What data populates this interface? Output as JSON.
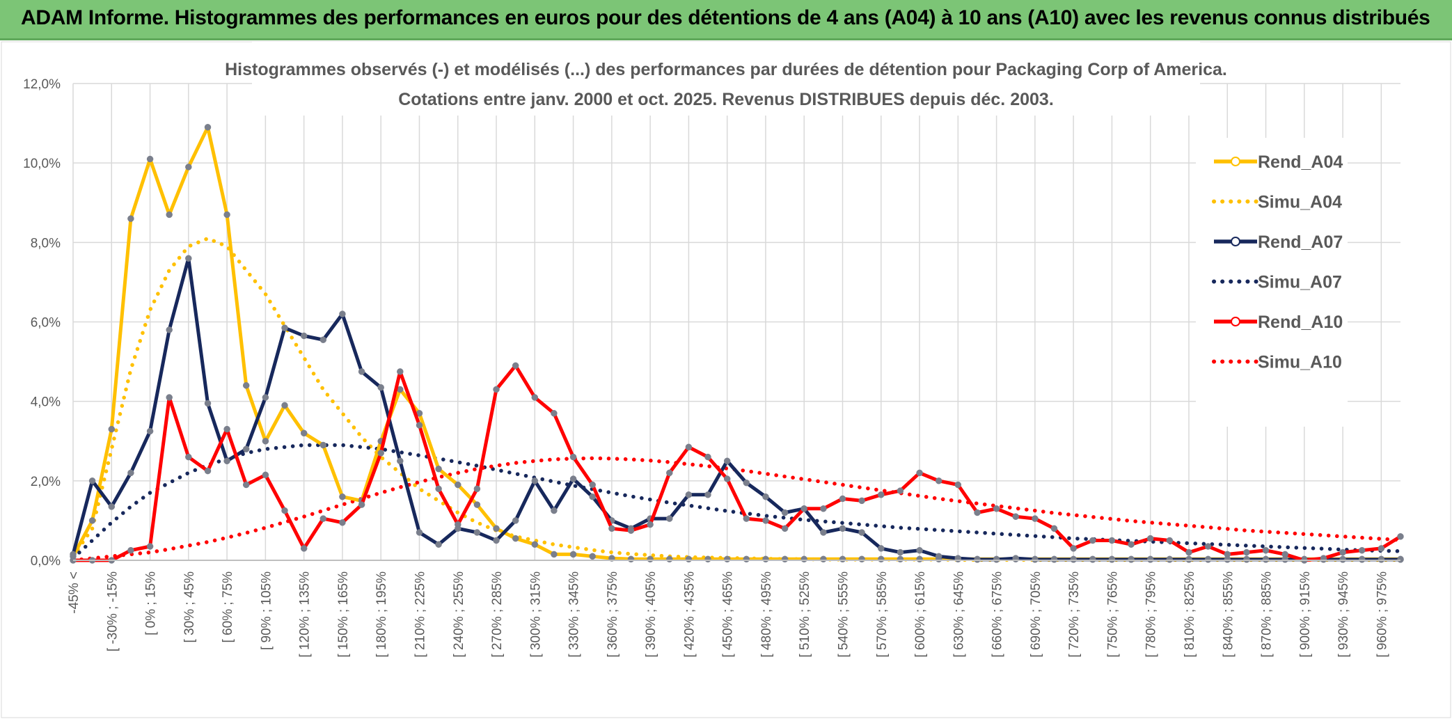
{
  "banner": {
    "title": "ADAM Informe. Histogrammes des performances en euros pour des détentions de 4 ans (A04) à 10 ans (A10) avec les revenus connus distribués"
  },
  "chart_data": {
    "type": "line",
    "title_lines": [
      "Histogrammes observés (-) et modélisés (...) des performances par durées de détention pour Packaging Corp of America.",
      "Cotations entre janv. 2000 et oct. 2025. Revenus DISTRIBUES depuis déc. 2003."
    ],
    "ylim": [
      0,
      12
    ],
    "y_ticks": [
      "0,0%",
      "2,0%",
      "4,0%",
      "6,0%",
      "8,0%",
      "10,0%",
      "12,0%"
    ],
    "x_labels": [
      "-45% <",
      "[ -30% ; -15%",
      "[ 0% ; 15%",
      "[ 30% ; 45%",
      "[ 60% ; 75%",
      "[ 90% ; 105%",
      "[ 120% ; 135%",
      "[ 150% ; 165%",
      "[ 180% ; 195%",
      "[ 210% ; 225%",
      "[ 240% ; 255%",
      "[ 270% ; 285%",
      "[ 300% ; 315%",
      "[ 330% ; 345%",
      "[ 360% ; 375%",
      "[ 390% ; 405%",
      "[ 420% ; 435%",
      "[ 450% ; 465%",
      "[ 480% ; 495%",
      "[ 510% ; 525%",
      "[ 540% ; 555%",
      "[ 570% ; 585%",
      "[ 600% ; 615%",
      "[ 630% ; 645%",
      "[ 660% ; 675%",
      "[ 690% ; 705%",
      "[ 720% ; 735%",
      "[ 750% ; 765%",
      "[ 780% ; 795%",
      "[ 810% ; 825%",
      "[ 840% ; 855%",
      "[ 870% ; 885%",
      "[ 900% ; 915%",
      "[ 930% ; 945%",
      "[ 960% ; 975%"
    ],
    "n_points": 70,
    "series": [
      {
        "name": "Rend_A04",
        "color": "#ffc000",
        "style": "solid",
        "values": [
          0.1,
          1.0,
          3.3,
          8.6,
          10.1,
          8.7,
          9.9,
          10.9,
          8.7,
          4.4,
          3.0,
          3.9,
          3.2,
          2.9,
          1.6,
          1.5,
          3.0,
          4.3,
          3.7,
          2.3,
          1.9,
          1.4,
          0.8,
          0.55,
          0.4,
          0.15,
          0.15,
          0.1,
          0.05,
          0.03,
          0.03,
          0.03,
          0.03,
          0.03,
          0.03,
          0.03,
          0.03,
          0.03,
          0.03,
          0.03,
          0.03,
          0.03,
          0.03,
          0.03,
          0.03,
          0.03,
          0.03,
          0.03,
          0.03,
          0.03,
          0.03,
          0.03,
          0.03,
          0.03,
          0.03,
          0.03,
          0.03,
          0.03,
          0.03,
          0.03,
          0.03,
          0.03,
          0.03,
          0.03,
          0.03,
          0.03,
          0.03,
          0.03,
          0.03,
          0.03
        ]
      },
      {
        "name": "Simu_A04",
        "color": "#ffc000",
        "style": "dotted",
        "values": [
          0.1,
          0.8,
          2.8,
          4.8,
          6.3,
          7.3,
          7.9,
          8.1,
          7.9,
          7.3,
          6.7,
          5.9,
          5.1,
          4.3,
          3.7,
          3.1,
          2.6,
          2.2,
          1.8,
          1.5,
          1.2,
          0.95,
          0.75,
          0.6,
          0.5,
          0.4,
          0.33,
          0.26,
          0.2,
          0.16,
          0.13,
          0.1,
          0.08,
          0.07,
          0.06,
          0.05,
          0.04,
          0.03,
          0.03,
          0.02,
          0.02,
          0.02,
          0.02,
          0.02,
          0.02,
          0.02,
          0.01,
          0.01,
          0.01,
          0.01,
          0.01,
          0.01,
          0.01,
          0.01,
          0.01,
          0.01,
          0.01,
          0.01,
          0.01,
          0.01,
          0.01,
          0.01,
          0.01,
          0.01,
          0.01,
          0.01,
          0.01,
          0.01,
          0.01,
          0.01
        ]
      },
      {
        "name": "Rend_A07",
        "color": "#17285c",
        "style": "solid",
        "values": [
          0.15,
          2.0,
          1.35,
          2.2,
          3.25,
          5.8,
          7.6,
          3.95,
          2.5,
          2.8,
          4.1,
          5.85,
          5.65,
          5.55,
          6.2,
          4.75,
          4.35,
          2.5,
          0.7,
          0.4,
          0.8,
          0.7,
          0.5,
          1.0,
          2.0,
          1.25,
          2.05,
          1.6,
          1.0,
          0.8,
          1.05,
          1.05,
          1.65,
          1.65,
          2.5,
          1.95,
          1.6,
          1.2,
          1.3,
          0.7,
          0.8,
          0.7,
          0.3,
          0.2,
          0.25,
          0.1,
          0.05,
          0.02,
          0.02,
          0.05,
          0.02,
          0.02,
          0.02,
          0.02,
          0.02,
          0.02,
          0.02,
          0.02,
          0.02,
          0.02,
          0.02,
          0.02,
          0.02,
          0.02,
          0.02,
          0.02,
          0.02,
          0.02,
          0.02,
          0.02
        ]
      },
      {
        "name": "Simu_A07",
        "color": "#17285c",
        "style": "dotted",
        "values": [
          0.05,
          0.5,
          0.95,
          1.35,
          1.7,
          1.95,
          2.2,
          2.4,
          2.55,
          2.7,
          2.8,
          2.85,
          2.9,
          2.9,
          2.9,
          2.85,
          2.8,
          2.72,
          2.64,
          2.56,
          2.47,
          2.38,
          2.28,
          2.18,
          2.08,
          1.98,
          1.88,
          1.79,
          1.7,
          1.61,
          1.53,
          1.45,
          1.38,
          1.31,
          1.24,
          1.18,
          1.12,
          1.07,
          1.02,
          0.98,
          0.94,
          0.9,
          0.86,
          0.82,
          0.79,
          0.76,
          0.73,
          0.7,
          0.67,
          0.64,
          0.61,
          0.58,
          0.55,
          0.53,
          0.51,
          0.49,
          0.47,
          0.45,
          0.43,
          0.41,
          0.39,
          0.37,
          0.35,
          0.33,
          0.31,
          0.29,
          0.27,
          0.25,
          0.24,
          0.23
        ]
      },
      {
        "name": "Rend_A10",
        "color": "#ff0000",
        "style": "solid",
        "values": [
          0.0,
          0.0,
          0.0,
          0.25,
          0.35,
          4.1,
          2.6,
          2.25,
          3.3,
          1.9,
          2.15,
          1.25,
          0.3,
          1.05,
          0.95,
          1.4,
          2.7,
          4.75,
          3.4,
          1.8,
          0.9,
          1.8,
          4.3,
          4.9,
          4.1,
          3.7,
          2.6,
          1.9,
          0.8,
          0.75,
          0.9,
          2.2,
          2.85,
          2.6,
          2.05,
          1.05,
          1.0,
          0.8,
          1.3,
          1.3,
          1.55,
          1.5,
          1.65,
          1.75,
          2.2,
          2.0,
          1.9,
          1.2,
          1.3,
          1.1,
          1.05,
          0.8,
          0.3,
          0.5,
          0.5,
          0.4,
          0.55,
          0.5,
          0.2,
          0.35,
          0.15,
          0.2,
          0.25,
          0.15,
          0.0,
          0.05,
          0.2,
          0.25,
          0.3,
          0.6
        ]
      },
      {
        "name": "Simu_A10",
        "color": "#ff0000",
        "style": "dotted",
        "values": [
          0.0,
          0.05,
          0.1,
          0.15,
          0.2,
          0.28,
          0.37,
          0.46,
          0.57,
          0.69,
          0.82,
          0.96,
          1.1,
          1.25,
          1.4,
          1.55,
          1.7,
          1.84,
          1.97,
          2.09,
          2.2,
          2.3,
          2.38,
          2.45,
          2.5,
          2.54,
          2.56,
          2.57,
          2.56,
          2.54,
          2.51,
          2.47,
          2.42,
          2.37,
          2.31,
          2.25,
          2.18,
          2.11,
          2.04,
          1.97,
          1.9,
          1.83,
          1.76,
          1.69,
          1.62,
          1.55,
          1.49,
          1.43,
          1.37,
          1.31,
          1.25,
          1.19,
          1.14,
          1.09,
          1.04,
          0.99,
          0.95,
          0.91,
          0.87,
          0.83,
          0.79,
          0.75,
          0.72,
          0.69,
          0.66,
          0.63,
          0.6,
          0.57,
          0.54,
          0.51
        ]
      }
    ],
    "legend_position": "right"
  }
}
